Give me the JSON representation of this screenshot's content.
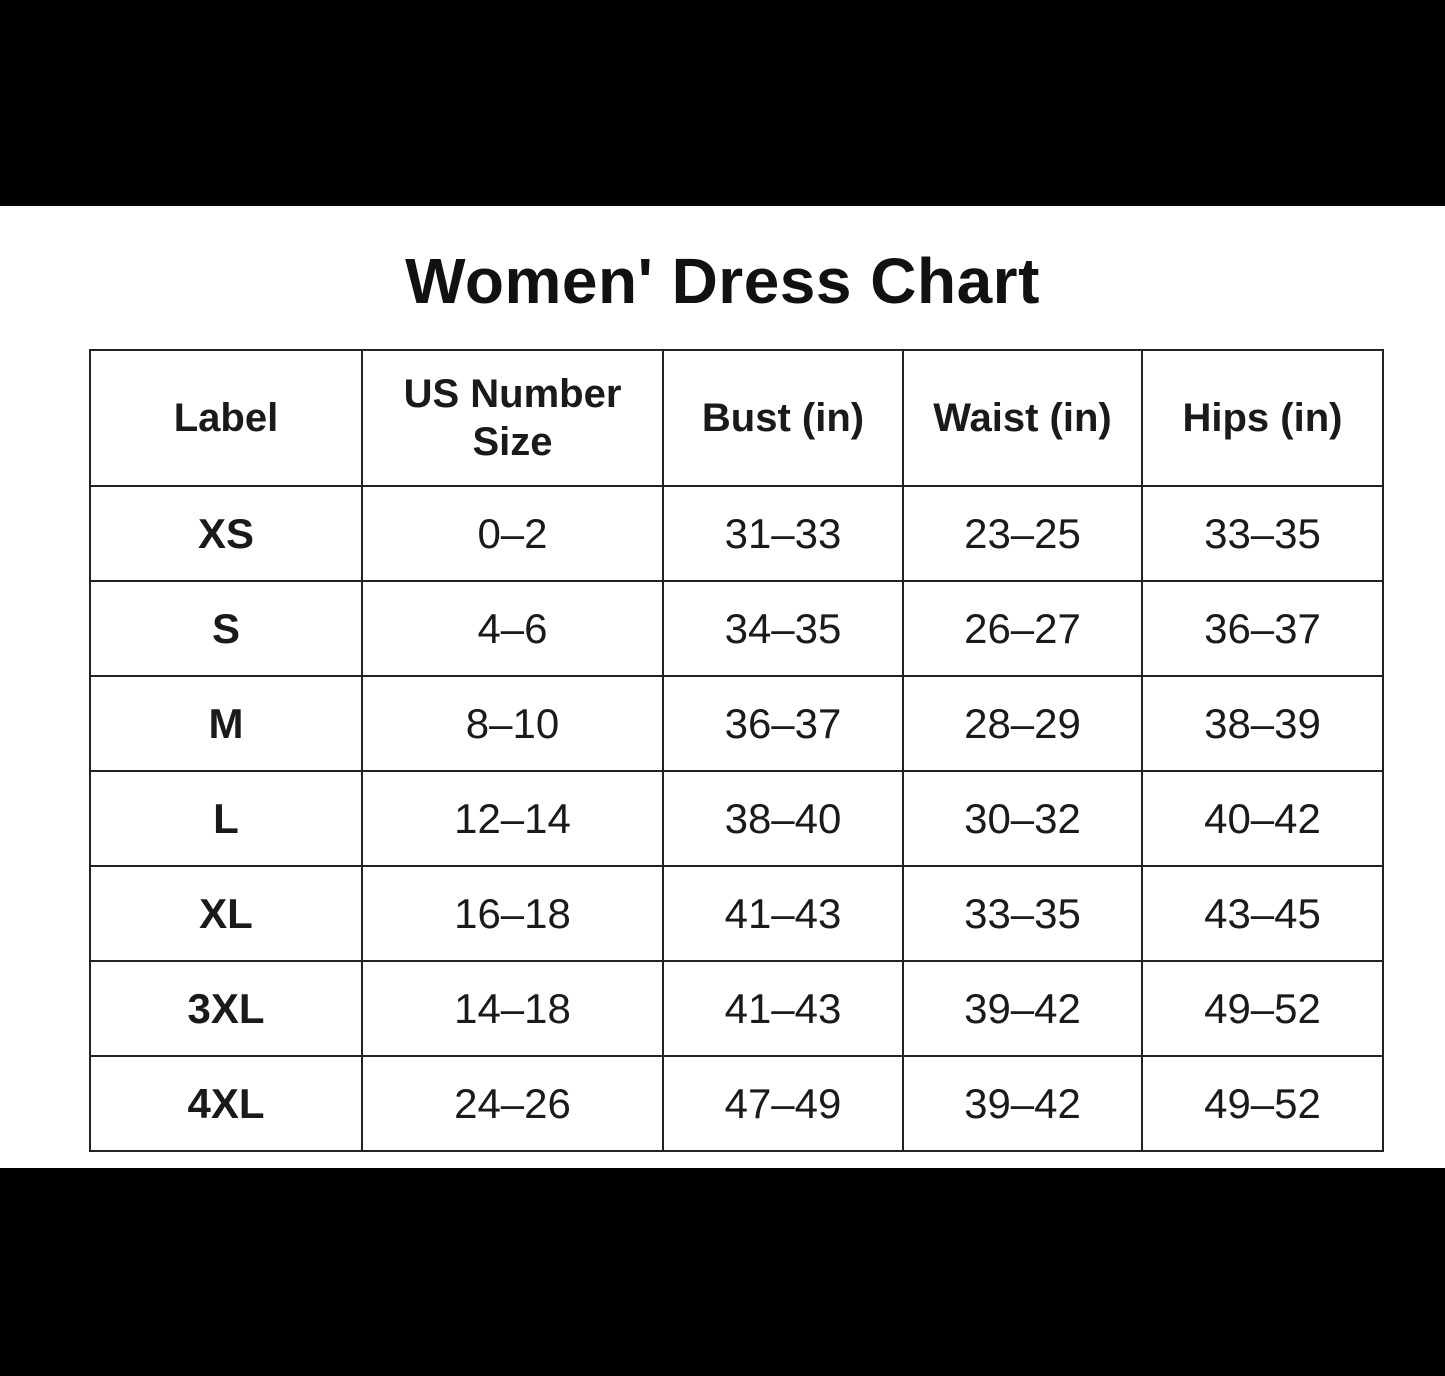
{
  "title": "Women' Dress Chart",
  "table": {
    "headers": [
      "Label",
      "US Number Size",
      "Bust (in)",
      "Waist (in)",
      "Hips (in)"
    ],
    "rows": [
      [
        "XS",
        "0-2",
        "31-33",
        "23-25",
        "33-35"
      ],
      [
        "S",
        "4-6",
        "34-35",
        "26-27",
        "36-37"
      ],
      [
        "M",
        "8-10",
        "36-37",
        "28-29",
        "38-39"
      ],
      [
        "L",
        "12-14",
        "38-40",
        "30-32",
        "40-42"
      ],
      [
        "XL",
        "16-18",
        "41-43",
        "33-35",
        "43-45"
      ],
      [
        "3XL",
        "14-18",
        "41-43",
        "39-42",
        "49-52"
      ],
      [
        "4XL",
        "24-26",
        "47-49",
        "39-42",
        "49-52"
      ]
    ]
  }
}
